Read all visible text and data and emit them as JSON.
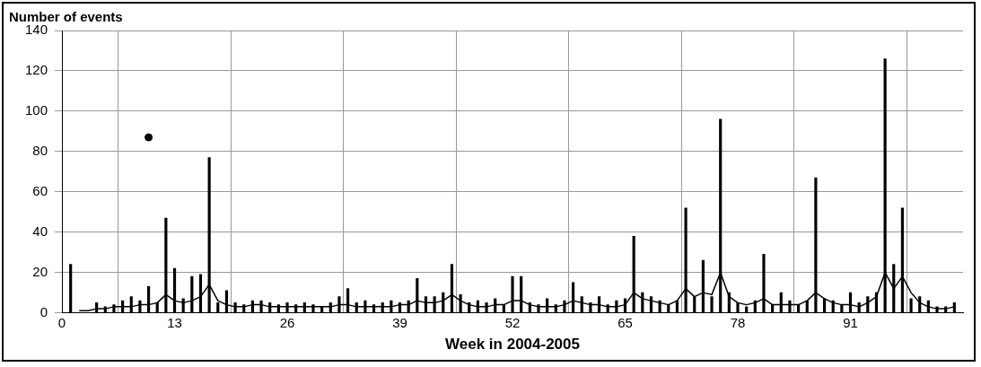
{
  "chart_data": {
    "type": "bar",
    "ylabel": "Number of events",
    "xlabel": "Week in 2004-2005",
    "x": [
      1,
      2,
      3,
      4,
      5,
      6,
      7,
      8,
      9,
      10,
      11,
      12,
      13,
      14,
      15,
      16,
      17,
      18,
      19,
      20,
      21,
      22,
      23,
      24,
      25,
      26,
      27,
      28,
      29,
      30,
      31,
      32,
      33,
      34,
      35,
      36,
      37,
      38,
      39,
      40,
      41,
      42,
      43,
      44,
      45,
      46,
      47,
      48,
      49,
      50,
      51,
      52,
      53,
      54,
      55,
      56,
      57,
      58,
      59,
      60,
      61,
      62,
      63,
      64,
      65,
      66,
      67,
      68,
      69,
      70,
      71,
      72,
      73,
      74,
      75,
      76,
      77,
      78,
      79,
      80,
      81,
      82,
      83,
      84,
      85,
      86,
      87,
      88,
      89,
      90,
      91,
      92,
      93,
      94,
      95,
      96,
      97,
      98,
      99,
      100,
      101,
      102,
      103
    ],
    "series": [
      {
        "color": "#000000",
        "values": [
          24,
          null,
          null,
          5,
          3,
          4,
          6,
          8,
          6,
          13,
          5,
          47,
          22,
          7,
          18,
          19,
          77,
          5,
          11,
          5,
          4,
          6,
          6,
          5,
          4,
          5,
          4,
          5,
          4,
          3,
          5,
          8,
          12,
          5,
          6,
          4,
          5,
          6,
          5,
          6,
          17,
          8,
          8,
          10,
          24,
          9,
          5,
          6,
          5,
          7,
          4,
          18,
          18,
          5,
          4,
          7,
          4,
          6,
          15,
          8,
          5,
          8,
          4,
          6,
          7,
          38,
          10,
          8,
          6,
          4,
          6,
          52,
          8,
          26,
          8,
          96,
          10,
          5,
          3,
          6,
          29,
          4,
          10,
          6,
          4,
          6,
          67,
          7,
          6,
          4,
          10,
          5,
          8,
          10,
          126,
          24,
          52,
          7,
          8,
          6,
          3,
          3,
          5
        ]
      },
      {
        "type": "line",
        "color": "#000000",
        "values": [
          null,
          1,
          1,
          2,
          2,
          3,
          3,
          3,
          4,
          4,
          5,
          9,
          6,
          5,
          6,
          8,
          14,
          6,
          4,
          3,
          3,
          4,
          4,
          3,
          3,
          3,
          3,
          3,
          3,
          3,
          3,
          4,
          4,
          3,
          3,
          3,
          3,
          3,
          4,
          4,
          6,
          5,
          5,
          6,
          9,
          6,
          4,
          3,
          3,
          4,
          4,
          6,
          6,
          4,
          3,
          3,
          3,
          4,
          6,
          5,
          4,
          4,
          3,
          3,
          4,
          10,
          7,
          6,
          5,
          4,
          6,
          12,
          8,
          10,
          9,
          20,
          8,
          5,
          4,
          5,
          7,
          4,
          4,
          4,
          4,
          6,
          10,
          7,
          5,
          4,
          4,
          3,
          5,
          8,
          20,
          12,
          18,
          10,
          5,
          3,
          2,
          2,
          3
        ]
      },
      {
        "type": "scatter",
        "color": "#000000",
        "x": [
          10
        ],
        "values": [
          87
        ]
      }
    ],
    "xlim": [
      0,
      104
    ],
    "xticks": [
      0,
      13,
      26,
      39,
      52,
      65,
      78,
      91
    ],
    "ylim": [
      0,
      140
    ],
    "yticks": [
      0,
      20,
      40,
      60,
      80,
      100,
      120,
      140
    ],
    "grid": true,
    "legend": false
  }
}
